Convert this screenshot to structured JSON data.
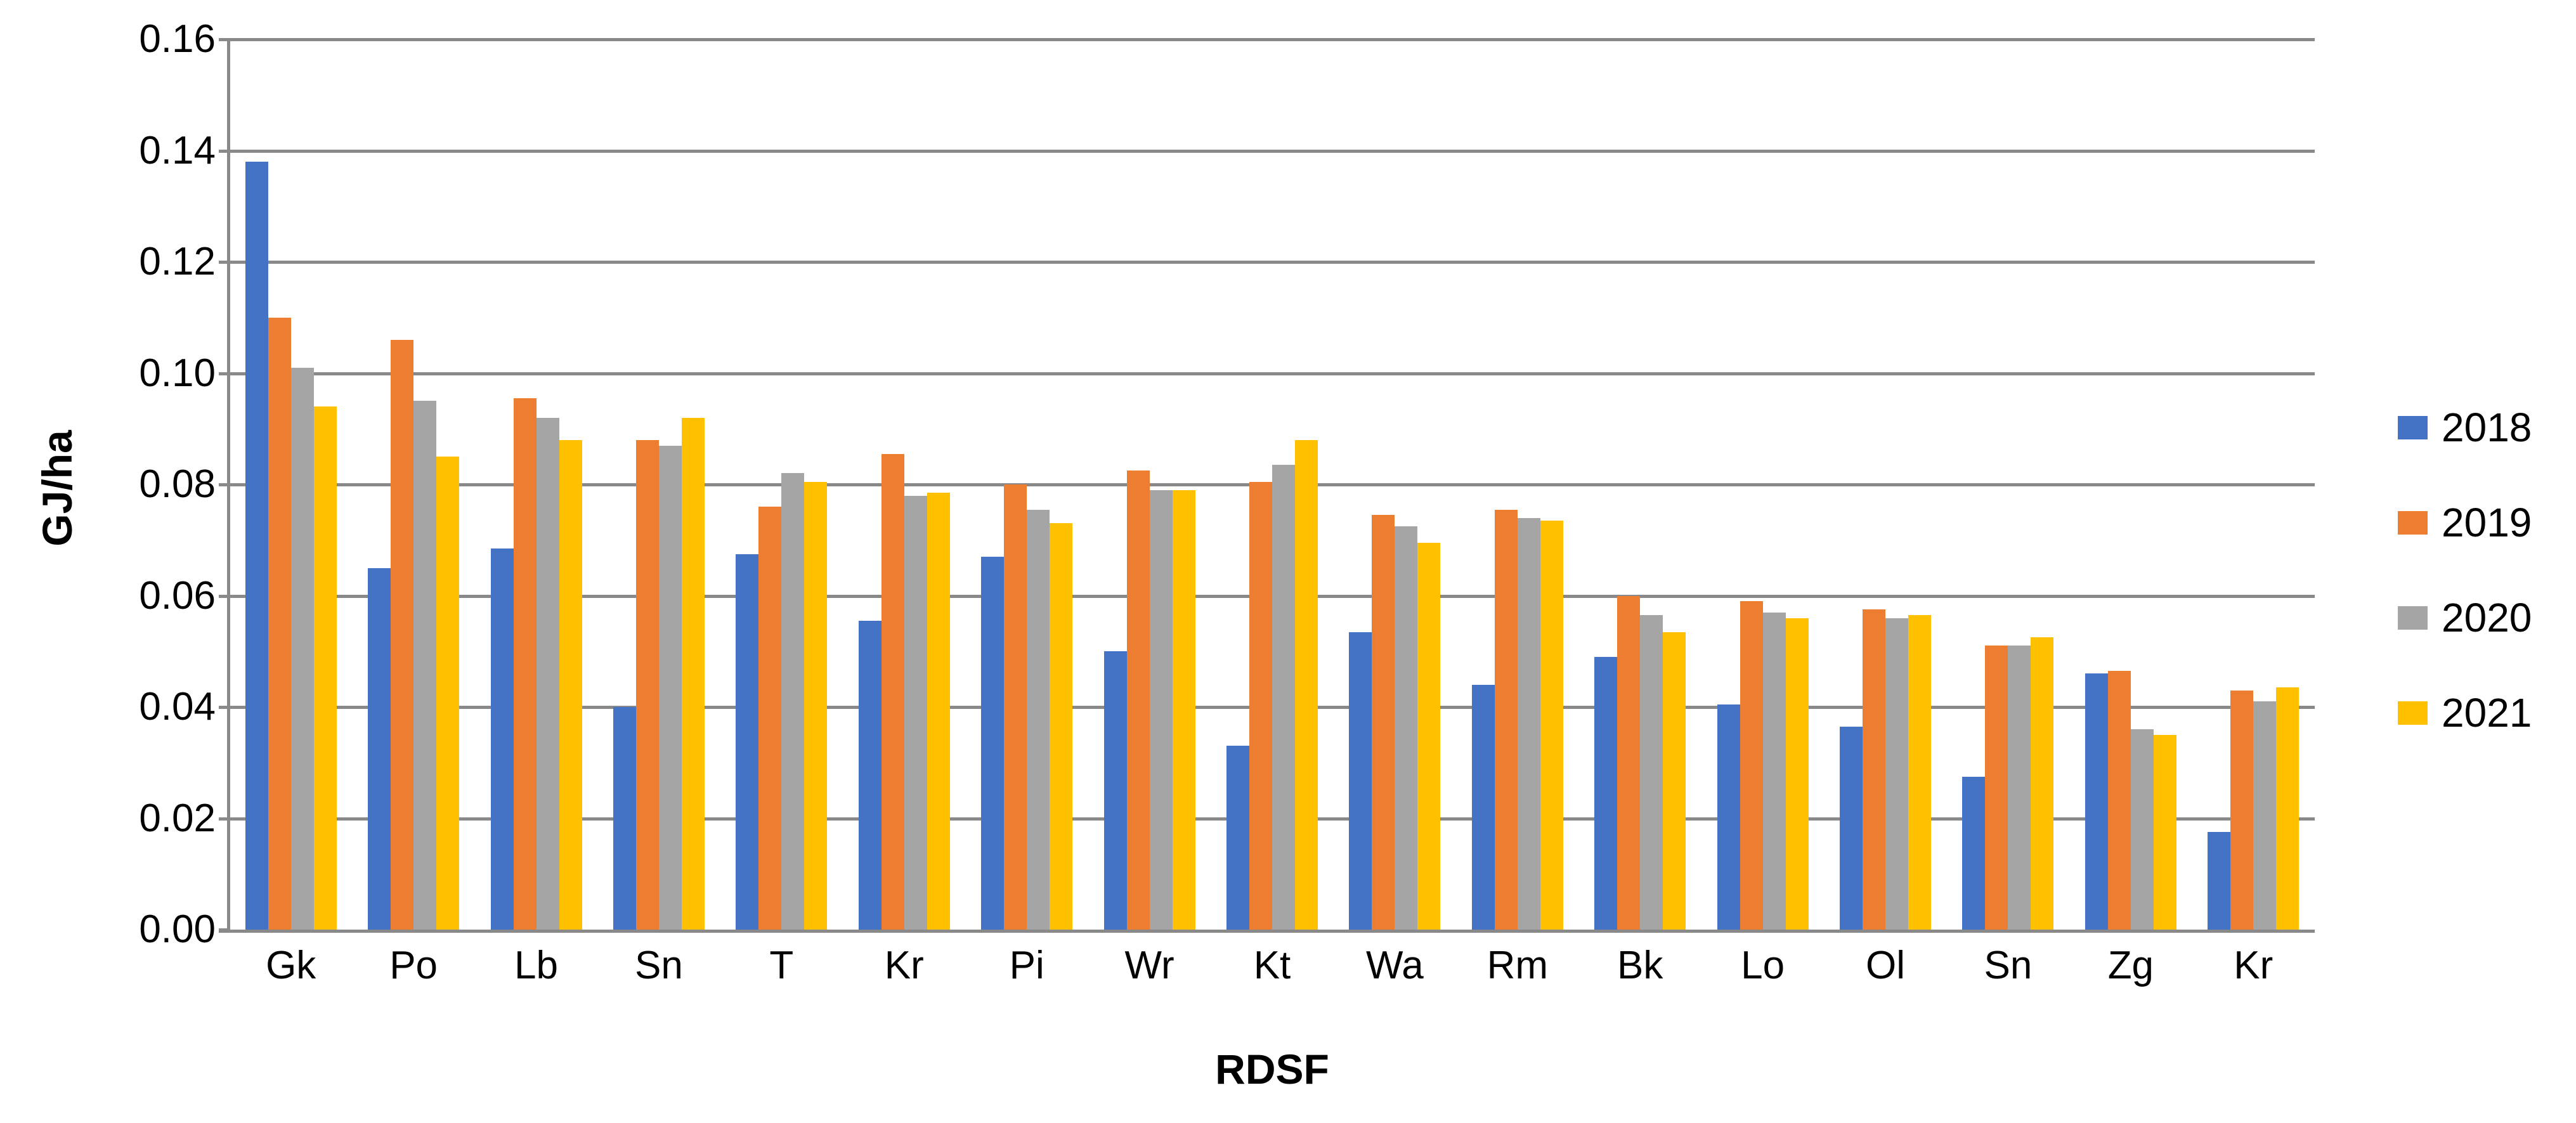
{
  "chart_data": {
    "type": "bar",
    "title": "",
    "xlabel": "RDSF",
    "ylabel": "GJ/ha",
    "ylim": [
      0,
      0.16
    ],
    "ytick_step": 0.02,
    "ytick_labels": [
      "0.00",
      "0.02",
      "0.04",
      "0.06",
      "0.08",
      "0.10",
      "0.12",
      "0.14",
      "0.16"
    ],
    "grid": true,
    "legend_position": "right",
    "categories": [
      "Gk",
      "Po",
      "Lb",
      "Sn",
      "T",
      "Kr",
      "Pi",
      "Wr",
      "Kt",
      "Wa",
      "Rm",
      "Bk",
      "Lo",
      "Ol",
      "Sn",
      "Zg",
      "Kr"
    ],
    "series": [
      {
        "name": "2018",
        "color": "#4472C4",
        "values": [
          0.138,
          0.065,
          0.0685,
          0.04,
          0.0675,
          0.0555,
          0.067,
          0.05,
          0.033,
          0.0535,
          0.044,
          0.049,
          0.0405,
          0.0365,
          0.0275,
          0.046,
          0.0175
        ]
      },
      {
        "name": "2019",
        "color": "#ED7D31",
        "values": [
          0.11,
          0.106,
          0.0955,
          0.088,
          0.076,
          0.0855,
          0.08,
          0.0825,
          0.0805,
          0.0745,
          0.0755,
          0.06,
          0.059,
          0.0575,
          0.051,
          0.0465,
          0.043
        ]
      },
      {
        "name": "2020",
        "color": "#A5A5A5",
        "values": [
          0.101,
          0.095,
          0.092,
          0.087,
          0.082,
          0.078,
          0.0755,
          0.079,
          0.0835,
          0.0725,
          0.074,
          0.0565,
          0.057,
          0.056,
          0.051,
          0.036,
          0.041
        ]
      },
      {
        "name": "2021",
        "color": "#FFC000",
        "values": [
          0.094,
          0.085,
          0.088,
          0.092,
          0.0805,
          0.0785,
          0.073,
          0.079,
          0.088,
          0.0695,
          0.0735,
          0.0535,
          0.056,
          0.0565,
          0.0525,
          0.035,
          0.0435
        ]
      }
    ],
    "colors": {
      "gridline": "#898989",
      "axis": "#898989",
      "text": "#000000",
      "background": "#FFFFFF"
    }
  }
}
